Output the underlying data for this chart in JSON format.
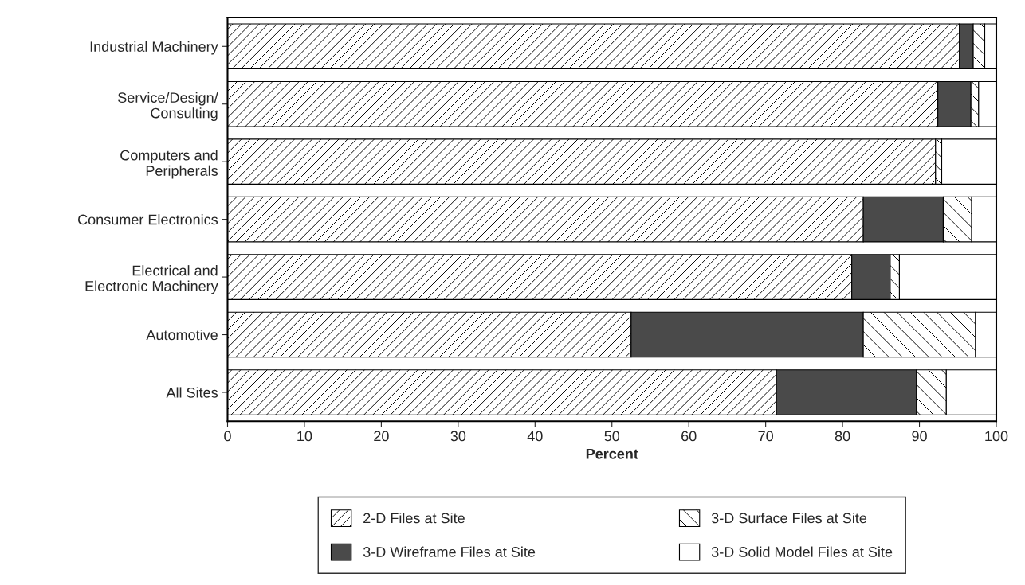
{
  "chart_data": {
    "type": "bar",
    "orientation": "horizontal",
    "stacked": true,
    "xlabel": "Percent",
    "categories": [
      "Industrial Machinery",
      "Service/Design/\nConsulting",
      "Computers and\nPeripherals",
      "Consumer Electronics",
      "Electrical and\nElectronic Machinery",
      "Automotive",
      "All Sites"
    ],
    "series": [
      {
        "name": "2-D Files at Site",
        "color": "#000000",
        "values": [
          95.2,
          92.4,
          92.1,
          82.7,
          81.2,
          52.5,
          71.4
        ]
      },
      {
        "name": "3-D Wireframe Files at Site",
        "color": "#4a4a4a",
        "values": [
          1.8,
          4.3,
          0,
          10.4,
          5.0,
          30.2,
          18.2
        ]
      },
      {
        "name": "3-D Surface Files at Site",
        "color": "#000000",
        "values": [
          1.5,
          1.0,
          0.8,
          3.7,
          1.2,
          14.6,
          3.9
        ]
      },
      {
        "name": "3-D Solid Model Files at Site",
        "color": "#ffffff",
        "values": [
          1.5,
          2.3,
          7.1,
          3.2,
          12.6,
          2.7,
          6.5
        ]
      }
    ],
    "xlim": [
      0,
      100
    ],
    "xticks": [
      0,
      10,
      20,
      30,
      40,
      50,
      60,
      70,
      80,
      90,
      100
    ],
    "grid": false,
    "legend": "bottom"
  }
}
